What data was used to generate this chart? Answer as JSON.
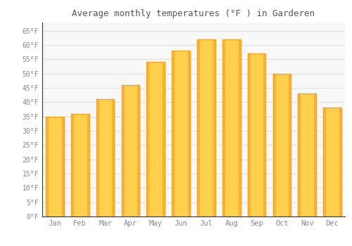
{
  "title": "Average monthly temperatures (°F ) in Garderen",
  "months": [
    "Jan",
    "Feb",
    "Mar",
    "Apr",
    "May",
    "Jun",
    "Jul",
    "Aug",
    "Sep",
    "Oct",
    "Nov",
    "Dec"
  ],
  "values": [
    35,
    36,
    41,
    46,
    54,
    58,
    62,
    62,
    57,
    50,
    43,
    38
  ],
  "bar_color_center": "#FFD04E",
  "bar_color_edge": "#F5A623",
  "background_color": "#FFFFFF",
  "plot_bg_color": "#F8F8F8",
  "yticks": [
    0,
    5,
    10,
    15,
    20,
    25,
    30,
    35,
    40,
    45,
    50,
    55,
    60,
    65
  ],
  "ylim": [
    0,
    68
  ],
  "grid_color": "#E0E0E0",
  "text_color": "#888888",
  "title_color": "#555555",
  "spine_color": "#333333"
}
